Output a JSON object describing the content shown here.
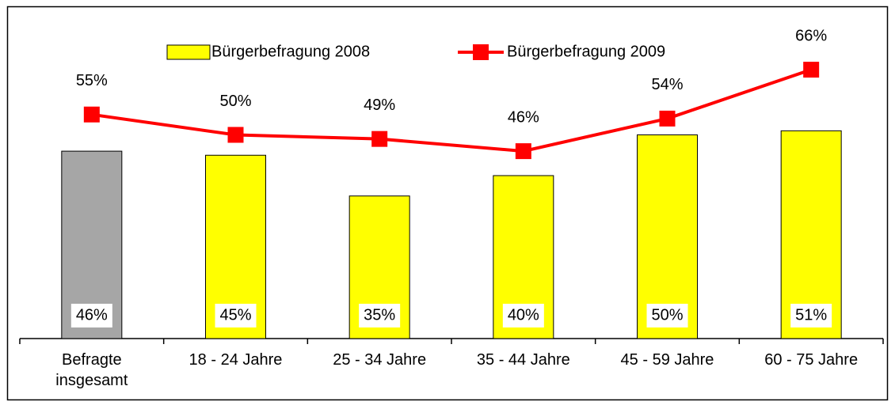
{
  "chart_data": {
    "type": "bar",
    "categories": [
      "Befragte\ninsgesamt",
      "18 - 24 Jahre",
      "25 - 34 Jahre",
      "35 - 44 Jahre",
      "45 - 59 Jahre",
      "60 - 75 Jahre"
    ],
    "series": [
      {
        "name": "Bürgerbefragung 2008",
        "type": "bar",
        "color": "#ffff00",
        "colors": [
          "#a6a6a6",
          "#ffff00",
          "#ffff00",
          "#ffff00",
          "#ffff00",
          "#ffff00"
        ],
        "values": [
          46,
          45,
          35,
          40,
          50,
          51
        ],
        "value_labels": [
          "46%",
          "45%",
          "35%",
          "40%",
          "50%",
          "51%"
        ]
      },
      {
        "name": "Bürgerbefragung 2009",
        "type": "line",
        "color": "#ff0000",
        "values": [
          55,
          50,
          49,
          46,
          54,
          66
        ],
        "value_labels": [
          "55%",
          "50%",
          "49%",
          "46%",
          "54%",
          "66%"
        ]
      }
    ],
    "ylim": [
      0,
      80
    ]
  }
}
